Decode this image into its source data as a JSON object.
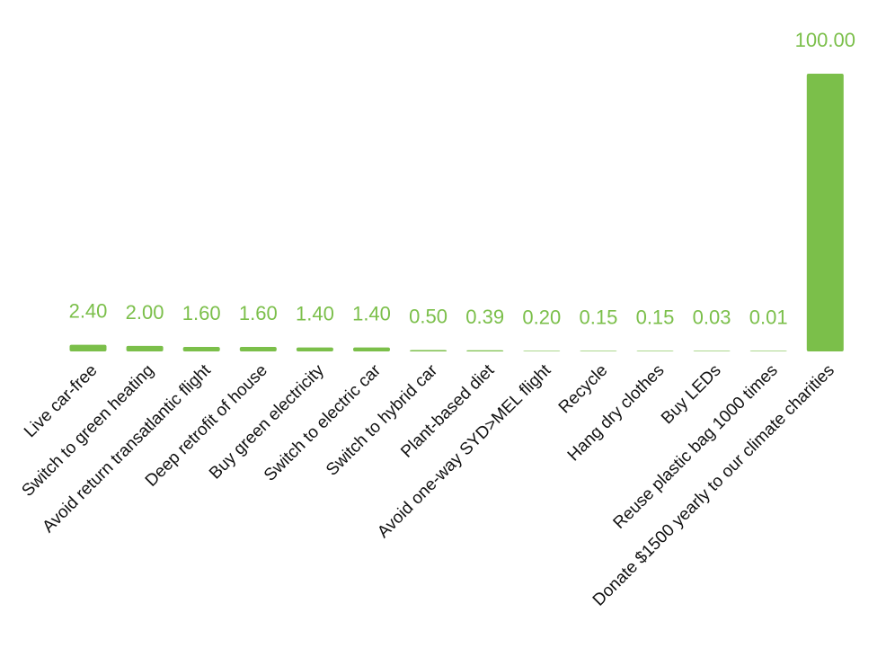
{
  "colors": {
    "bar": "#7bbf4a",
    "value_label": "#7bbf4a",
    "category_label": "#111111",
    "background": "#ffffff"
  },
  "chart_data": {
    "type": "bar",
    "title": "",
    "xlabel": "",
    "ylabel": "",
    "ylim": [
      0,
      100
    ],
    "grid": false,
    "legend": "none",
    "categories": [
      "Live car-free",
      "Switch to green heating",
      "Avoid return transatlantic flight",
      "Deep retrofit of house",
      "Buy green electricity",
      "Switch to electric car",
      "Switch to hybrid car",
      "Plant-based diet",
      "Avoid one-way SYD>MEL flight",
      "Recycle",
      "Hang dry clothes",
      "Buy LEDs",
      "Reuse plastic bag 1000 times",
      "Donate $1500 yearly to our climate charities"
    ],
    "values": [
      2.4,
      2.0,
      1.6,
      1.6,
      1.4,
      1.4,
      0.5,
      0.39,
      0.2,
      0.15,
      0.15,
      0.03,
      0.01,
      100.0
    ],
    "data_labels": [
      "2.40",
      "2.00",
      "1.60",
      "1.60",
      "1.40",
      "1.40",
      "0.50",
      "0.39",
      "0.20",
      "0.15",
      "0.15",
      "0.03",
      "0.01",
      "100.00"
    ]
  }
}
